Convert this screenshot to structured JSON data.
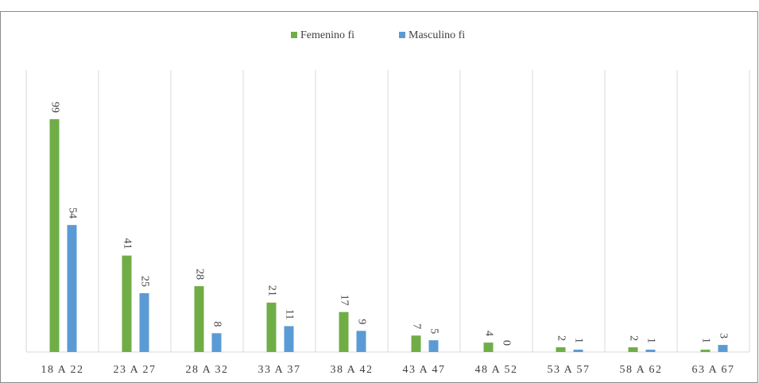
{
  "chart_data": {
    "type": "bar",
    "categories": [
      "18 A 22",
      "23 A 27",
      "28 A 32",
      "33 A 37",
      "38 A 42",
      "43 A 47",
      "48 A 52",
      "53 A 57",
      "58 A 62",
      "63 A 67"
    ],
    "series": [
      {
        "name": "Femenino fi",
        "color": "#70ad47",
        "values": [
          99,
          41,
          28,
          21,
          17,
          7,
          4,
          2,
          2,
          1
        ]
      },
      {
        "name": "Masculino fi",
        "color": "#5b9bd5",
        "values": [
          54,
          25,
          8,
          11,
          9,
          5,
          0,
          1,
          1,
          3
        ]
      }
    ],
    "ylim": [
      0,
      100
    ],
    "legend": "top",
    "data_labels": true
  }
}
